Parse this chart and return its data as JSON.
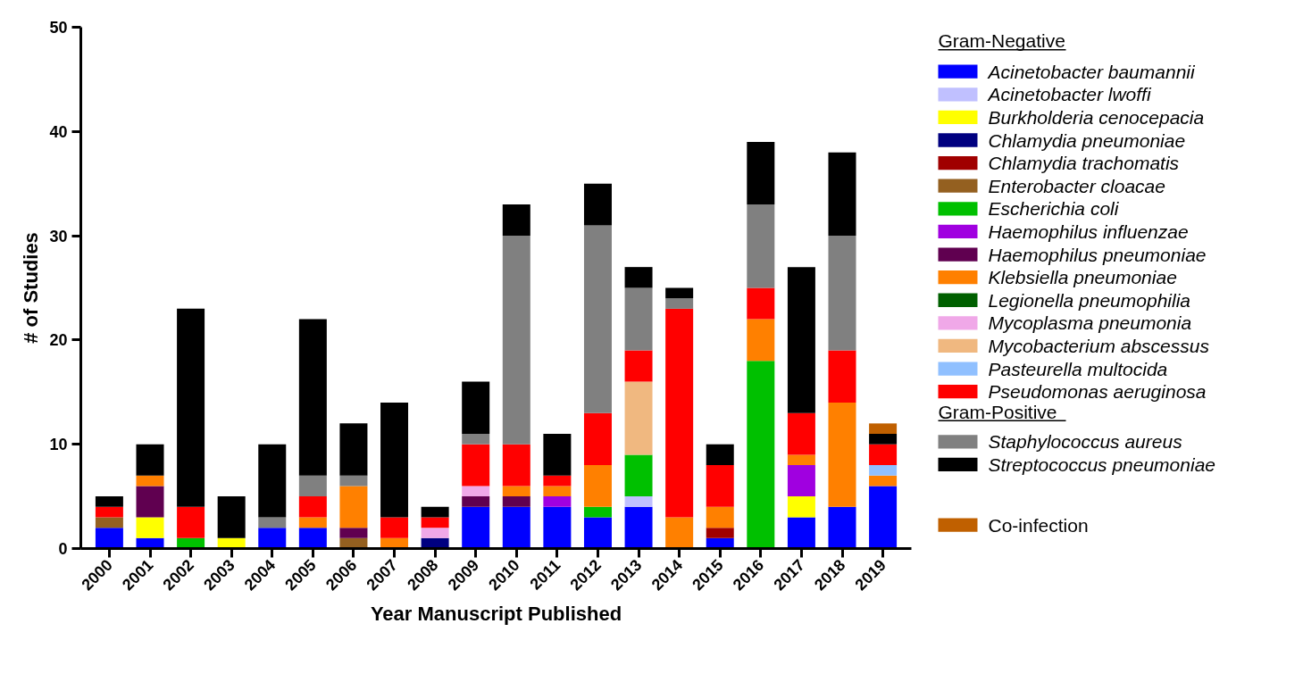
{
  "chart_data": {
    "type": "bar",
    "stacked": true,
    "xlabel": "Year Manuscript Published",
    "ylabel": "# of Studies",
    "categories": [
      "2000",
      "2001",
      "2002",
      "2003",
      "2004",
      "2005",
      "2006",
      "2007",
      "2008",
      "2009",
      "2010",
      "2011",
      "2012",
      "2013",
      "2014",
      "2015",
      "2016",
      "2017",
      "2018",
      "2019"
    ],
    "ylim": [
      0,
      50
    ],
    "yticks": [
      0,
      10,
      20,
      30,
      40,
      50
    ],
    "grid": false,
    "legend": "right",
    "legend_title": "Gram-Negative",
    "annotations": [
      "Gram-Positive"
    ],
    "series": [
      {
        "name": "Acinetobacter baumannii",
        "color": "#0000ff",
        "values": [
          2,
          1,
          0,
          0,
          2,
          2,
          0,
          0,
          0,
          4,
          4,
          4,
          3,
          4,
          0,
          1,
          0,
          3,
          4,
          6
        ]
      },
      {
        "name": "Acinetobacter lwoffi",
        "color": "#c0c0ff",
        "values": [
          0,
          0,
          0,
          0,
          0,
          0,
          0,
          0,
          0,
          0,
          0,
          0,
          0,
          1,
          0,
          0,
          0,
          0,
          0,
          0
        ]
      },
      {
        "name": "Burkholderia cenocepacia",
        "color": "#ffff00",
        "values": [
          0,
          2,
          0,
          1,
          0,
          0,
          0,
          0,
          0,
          0,
          0,
          0,
          0,
          0,
          0,
          0,
          0,
          2,
          0,
          0
        ]
      },
      {
        "name": "Chlamydia pneumoniae",
        "color": "#000080",
        "values": [
          0,
          0,
          0,
          0,
          0,
          0,
          0,
          0,
          1,
          0,
          0,
          0,
          0,
          0,
          0,
          0,
          0,
          0,
          0,
          0
        ]
      },
      {
        "name": "Chlamydia trachomatis",
        "color": "#a00000",
        "values": [
          0,
          0,
          0,
          0,
          0,
          0,
          0,
          0,
          0,
          0,
          0,
          0,
          0,
          0,
          0,
          1,
          0,
          0,
          0,
          0
        ]
      },
      {
        "name": "Enterobacter cloacae",
        "color": "#946020",
        "values": [
          1,
          0,
          0,
          0,
          0,
          0,
          1,
          0,
          0,
          0,
          0,
          0,
          0,
          0,
          0,
          0,
          0,
          0,
          0,
          0
        ]
      },
      {
        "name": "Escherichia coli",
        "color": "#00c000",
        "values": [
          0,
          0,
          1,
          0,
          0,
          0,
          0,
          0,
          0,
          0,
          0,
          0,
          1,
          4,
          0,
          0,
          18,
          0,
          0,
          0
        ]
      },
      {
        "name": "Haemophilus influenzae",
        "color": "#a000e0",
        "values": [
          0,
          0,
          0,
          0,
          0,
          0,
          0,
          0,
          0,
          0,
          0,
          1,
          0,
          0,
          0,
          0,
          0,
          3,
          0,
          0
        ]
      },
      {
        "name": "Haemophilus pneumoniae",
        "color": "#600050",
        "values": [
          0,
          3,
          0,
          0,
          0,
          0,
          1,
          0,
          0,
          1,
          1,
          0,
          0,
          0,
          0,
          0,
          0,
          0,
          0,
          0
        ]
      },
      {
        "name": "Klebsiella pneumoniae",
        "color": "#ff8000",
        "values": [
          0,
          1,
          0,
          0,
          0,
          1,
          4,
          1,
          0,
          0,
          1,
          1,
          4,
          0,
          3,
          2,
          4,
          1,
          10,
          1
        ]
      },
      {
        "name": "Legionella pneumophilia",
        "color": "#006000",
        "values": [
          0,
          0,
          0,
          0,
          0,
          0,
          0,
          0,
          0,
          0,
          0,
          0,
          0,
          0,
          0,
          0,
          0,
          0,
          0,
          0
        ]
      },
      {
        "name": "Mycoplasma pneumonia",
        "color": "#f0a8e8",
        "values": [
          0,
          0,
          0,
          0,
          0,
          0,
          0,
          0,
          1,
          1,
          0,
          0,
          0,
          0,
          0,
          0,
          0,
          0,
          0,
          0
        ]
      },
      {
        "name": "Mycobacterium abscessus",
        "color": "#f0b880",
        "values": [
          0,
          0,
          0,
          0,
          0,
          0,
          0,
          0,
          0,
          0,
          0,
          0,
          0,
          7,
          0,
          0,
          0,
          0,
          0,
          0
        ]
      },
      {
        "name": "Pasteurella multocida",
        "color": "#90c0ff",
        "values": [
          0,
          0,
          0,
          0,
          0,
          0,
          0,
          0,
          0,
          0,
          0,
          0,
          0,
          0,
          0,
          0,
          0,
          0,
          0,
          1
        ]
      },
      {
        "name": "Pseudomonas aeruginosa",
        "color": "#ff0000",
        "values": [
          1,
          0,
          3,
          0,
          0,
          2,
          0,
          2,
          1,
          4,
          4,
          1,
          5,
          3,
          20,
          4,
          3,
          4,
          5,
          2
        ]
      },
      {
        "name": "Staphylococcus aureus",
        "color": "#808080",
        "values": [
          0,
          0,
          0,
          0,
          1,
          2,
          1,
          0,
          0,
          1,
          20,
          0,
          18,
          6,
          1,
          0,
          8,
          0,
          11,
          0
        ]
      },
      {
        "name": "Streptococcus pneumoniae",
        "color": "#000000",
        "values": [
          1,
          3,
          19,
          4,
          7,
          15,
          5,
          11,
          1,
          5,
          3,
          4,
          4,
          2,
          1,
          2,
          6,
          14,
          8,
          1
        ]
      },
      {
        "name": "Co-infection",
        "color": "#c06000",
        "values": [
          0,
          0,
          0,
          0,
          0,
          0,
          0,
          0,
          0,
          0,
          0,
          0,
          0,
          0,
          0,
          0,
          0,
          0,
          0,
          1
        ]
      }
    ]
  }
}
